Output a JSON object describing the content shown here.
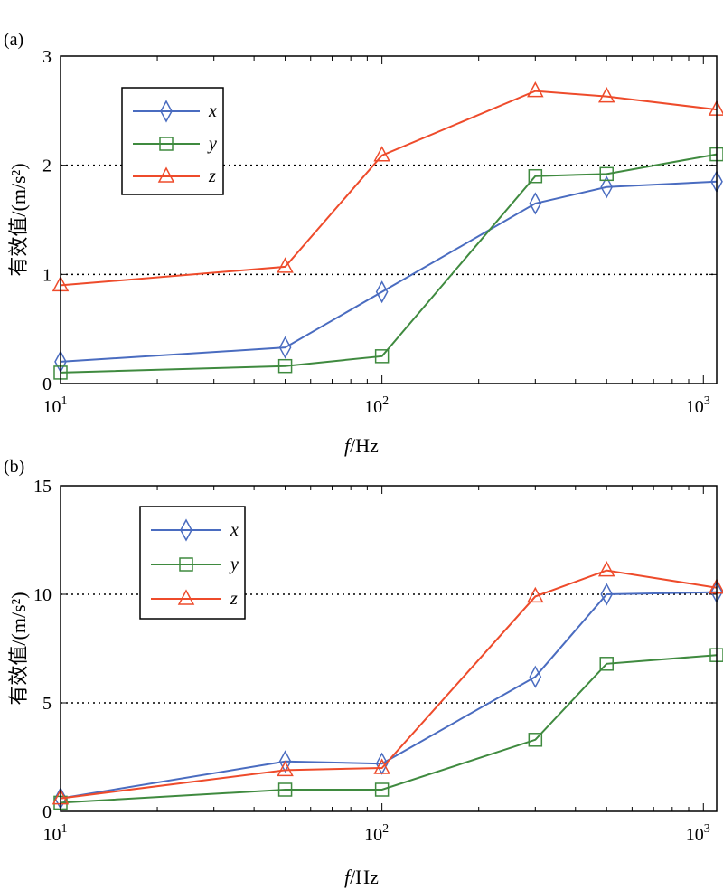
{
  "chart_data": [
    {
      "panel": "(a)",
      "type": "line",
      "xscale": "log",
      "xlim": [
        10,
        1100
      ],
      "ylim": [
        0,
        3
      ],
      "x_ticks": [
        {
          "value": 10,
          "base": "10",
          "exp": "1"
        },
        {
          "value": 100,
          "base": "10",
          "exp": "2"
        },
        {
          "value": 1000,
          "base": "10",
          "exp": "3"
        }
      ],
      "y_ticks": [
        "0",
        "1",
        "2",
        "3"
      ],
      "dotted_gridlines_y": [
        1,
        2
      ],
      "xlabel": {
        "italic": "f",
        "rest": "/Hz"
      },
      "ylabel": "有效值/(m/s²)",
      "legend_position": "top-left",
      "series": [
        {
          "name": "x",
          "color": "#4a6cc0",
          "marker": "diamond",
          "x": [
            10,
            50,
            100,
            300,
            500,
            1100
          ],
          "y": [
            0.2,
            0.33,
            0.84,
            1.65,
            1.8,
            1.85
          ]
        },
        {
          "name": "y",
          "color": "#3f8a3f",
          "marker": "square",
          "x": [
            10,
            50,
            100,
            300,
            500,
            1100
          ],
          "y": [
            0.1,
            0.16,
            0.25,
            1.9,
            1.92,
            2.1
          ]
        },
        {
          "name": "z",
          "color": "#ee4b2b",
          "marker": "triangle",
          "x": [
            10,
            50,
            100,
            300,
            500,
            1100
          ],
          "y": [
            0.9,
            1.07,
            2.09,
            2.68,
            2.63,
            2.51
          ]
        }
      ]
    },
    {
      "panel": "(b)",
      "type": "line",
      "xscale": "log",
      "xlim": [
        10,
        1100
      ],
      "ylim": [
        0,
        15
      ],
      "x_ticks": [
        {
          "value": 10,
          "base": "10",
          "exp": "1"
        },
        {
          "value": 100,
          "base": "10",
          "exp": "2"
        },
        {
          "value": 1000,
          "base": "10",
          "exp": "3"
        }
      ],
      "y_ticks": [
        "0",
        "5",
        "10",
        "15"
      ],
      "dotted_gridlines_y": [
        5,
        10
      ],
      "xlabel": {
        "italic": "f",
        "rest": "/Hz"
      },
      "ylabel": "有效值/(m/s²)",
      "legend_position": "top-left",
      "series": [
        {
          "name": "x",
          "color": "#4a6cc0",
          "marker": "diamond",
          "x": [
            10,
            50,
            100,
            300,
            500,
            1100
          ],
          "y": [
            0.6,
            2.3,
            2.2,
            6.2,
            10.0,
            10.1
          ]
        },
        {
          "name": "y",
          "color": "#3f8a3f",
          "marker": "square",
          "x": [
            10,
            50,
            100,
            300,
            500,
            1100
          ],
          "y": [
            0.4,
            1.0,
            1.0,
            3.3,
            6.8,
            7.2
          ]
        },
        {
          "name": "z",
          "color": "#ee4b2b",
          "marker": "triangle",
          "x": [
            10,
            50,
            100,
            300,
            500,
            1100
          ],
          "y": [
            0.6,
            1.9,
            2.0,
            9.9,
            11.1,
            10.3
          ]
        }
      ]
    }
  ]
}
